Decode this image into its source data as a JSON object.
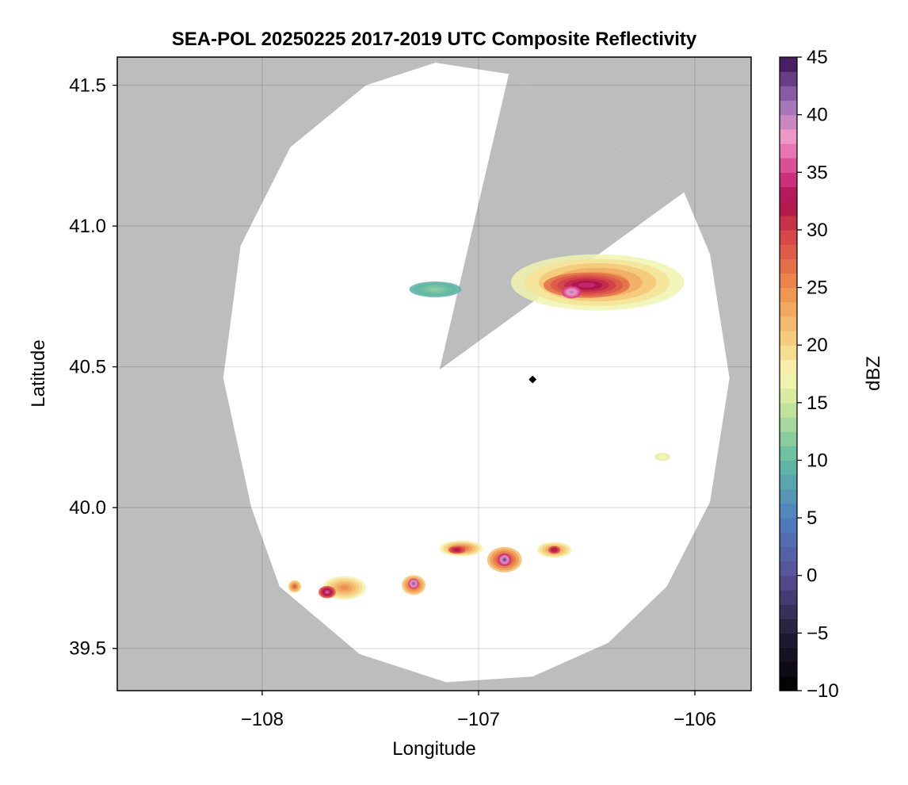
{
  "chart_data": {
    "type": "heatmap",
    "title": "SEA-POL 20250225 2017-2019 UTC Composite Reflectivity",
    "xlabel": "Longitude",
    "ylabel": "Latitude",
    "xlim": [
      -108.67,
      -105.74
    ],
    "ylim": [
      39.35,
      41.6
    ],
    "xticks": [
      -108,
      -107,
      -106
    ],
    "xtick_labels": [
      "−108",
      "−107",
      "−106"
    ],
    "yticks": [
      39.5,
      40.0,
      40.5,
      41.0,
      41.5
    ],
    "ytick_labels": [
      "39.5",
      "40.0",
      "40.5",
      "41.0",
      "41.5"
    ],
    "grid": true,
    "background_color": "#bdbdbd",
    "radar": {
      "center_lon": -106.75,
      "center_lat": 40.455,
      "coverage_edge_points": [
        [
          -107.92,
          39.72
        ],
        [
          -108.05,
          40.0
        ],
        [
          -108.18,
          40.46
        ],
        [
          -108.1,
          40.93
        ],
        [
          -107.87,
          41.28
        ],
        [
          -107.52,
          41.5
        ],
        [
          -107.2,
          41.58
        ],
        [
          -106.86,
          41.54
        ],
        [
          -106.05,
          41.12
        ],
        [
          -105.93,
          40.9
        ],
        [
          -105.84,
          40.46
        ],
        [
          -105.93,
          40.02
        ],
        [
          -106.13,
          39.72
        ],
        [
          -106.4,
          39.52
        ],
        [
          -106.75,
          39.4
        ],
        [
          -107.15,
          39.38
        ],
        [
          -107.55,
          39.48
        ]
      ],
      "blocked_sector_vertices": [
        [
          -107.18,
          40.49
        ],
        [
          -106.86,
          41.54
        ],
        [
          -106.05,
          41.12
        ]
      ],
      "marker": {
        "lon": -106.75,
        "lat": 40.455,
        "color": "#000000"
      }
    },
    "colorbar": {
      "label": "dBZ",
      "min": -10,
      "max": 45,
      "ticks": [
        -10,
        -5,
        0,
        5,
        10,
        15,
        20,
        25,
        30,
        35,
        40,
        45
      ],
      "tick_labels": [
        "−10",
        "−5",
        "0",
        "5",
        "10",
        "15",
        "20",
        "25",
        "30",
        "35",
        "40",
        "45"
      ],
      "colormap": "spectral reversed with dark low end",
      "color_stops": [
        {
          "value": -10,
          "color": "#000000"
        },
        {
          "value": -5,
          "color": "#231d36"
        },
        {
          "value": 0,
          "color": "#584f98"
        },
        {
          "value": 5,
          "color": "#4f7fbe"
        },
        {
          "value": 10,
          "color": "#62bba2"
        },
        {
          "value": 15,
          "color": "#cfe79b"
        },
        {
          "value": 17.5,
          "color": "#f8f7b5"
        },
        {
          "value": 20,
          "color": "#f5d585"
        },
        {
          "value": 25,
          "color": "#ef8e4b"
        },
        {
          "value": 30,
          "color": "#d13d48"
        },
        {
          "value": 32.5,
          "color": "#a9104c"
        },
        {
          "value": 35,
          "color": "#d63b8a"
        },
        {
          "value": 38,
          "color": "#ef9ac8"
        },
        {
          "value": 41,
          "color": "#9e72b8"
        },
        {
          "value": 45,
          "color": "#3a0f52"
        }
      ]
    },
    "echo_cells": [
      {
        "lon": -107.2,
        "lat": 40.775,
        "rlon": 0.12,
        "rlat": 0.028,
        "dbz_edge": 9,
        "dbz_core": 12
      },
      {
        "lon": -106.45,
        "lat": 40.8,
        "rlon": 0.4,
        "rlat": 0.1,
        "dbz_edge": 17,
        "dbz_core": 27
      },
      {
        "lon": -106.5,
        "lat": 40.79,
        "rlon": 0.2,
        "rlat": 0.045,
        "dbz_edge": 27,
        "dbz_core": 34
      },
      {
        "lon": -106.57,
        "lat": 40.765,
        "rlon": 0.045,
        "rlat": 0.022,
        "dbz_edge": 35,
        "dbz_core": 40
      },
      {
        "lon": -106.15,
        "lat": 40.18,
        "rlon": 0.035,
        "rlat": 0.014,
        "dbz_edge": 16,
        "dbz_core": 18
      },
      {
        "lon": -107.85,
        "lat": 39.72,
        "rlon": 0.03,
        "rlat": 0.022,
        "dbz_edge": 20,
        "dbz_core": 28
      },
      {
        "lon": -107.62,
        "lat": 39.715,
        "rlon": 0.1,
        "rlat": 0.042,
        "dbz_edge": 18,
        "dbz_core": 25
      },
      {
        "lon": -107.7,
        "lat": 39.7,
        "rlon": 0.04,
        "rlat": 0.022,
        "dbz_edge": 28,
        "dbz_core": 36
      },
      {
        "lon": -107.3,
        "lat": 39.725,
        "rlon": 0.055,
        "rlat": 0.035,
        "dbz_edge": 21,
        "dbz_core": 30
      },
      {
        "lon": -107.3,
        "lat": 39.73,
        "rlon": 0.024,
        "rlat": 0.018,
        "dbz_edge": 35,
        "dbz_core": 42
      },
      {
        "lon": -107.08,
        "lat": 39.855,
        "rlon": 0.1,
        "rlat": 0.028,
        "dbz_edge": 18,
        "dbz_core": 28
      },
      {
        "lon": -107.1,
        "lat": 39.85,
        "rlon": 0.04,
        "rlat": 0.014,
        "dbz_edge": 28,
        "dbz_core": 33
      },
      {
        "lon": -106.88,
        "lat": 39.815,
        "rlon": 0.08,
        "rlat": 0.045,
        "dbz_edge": 22,
        "dbz_core": 32
      },
      {
        "lon": -106.88,
        "lat": 39.815,
        "rlon": 0.03,
        "rlat": 0.022,
        "dbz_edge": 34,
        "dbz_core": 43
      },
      {
        "lon": -106.65,
        "lat": 39.85,
        "rlon": 0.08,
        "rlat": 0.028,
        "dbz_edge": 18,
        "dbz_core": 26
      },
      {
        "lon": -106.65,
        "lat": 39.85,
        "rlon": 0.028,
        "rlat": 0.014,
        "dbz_edge": 28,
        "dbz_core": 34
      }
    ]
  }
}
